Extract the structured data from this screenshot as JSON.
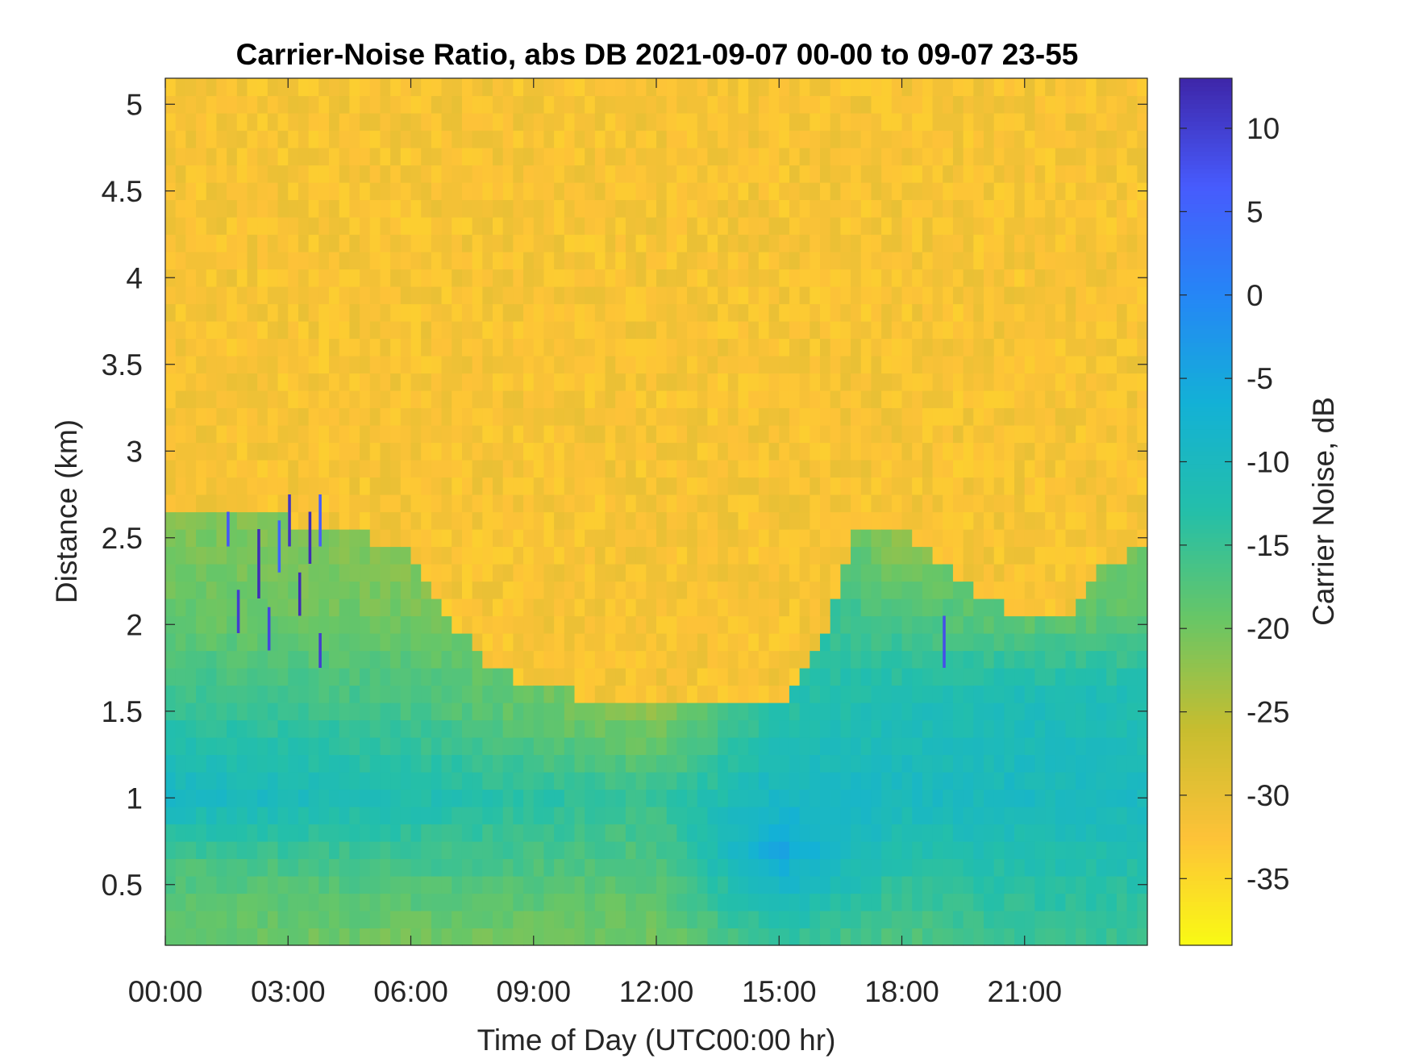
{
  "chart_data": {
    "type": "heatmap",
    "title": "Carrier-Noise Ratio, abs DB 2021-09-07 00-00 to 09-07 23-55",
    "xlabel": "Time of Day (UTC00:00 hr)",
    "ylabel": "Distance (km)",
    "x_unit": "hours",
    "xlim": [
      0,
      24
    ],
    "ylim": [
      0.15,
      5.15
    ],
    "x_ticks": [
      0,
      3,
      6,
      9,
      12,
      15,
      18,
      21
    ],
    "x_tick_labels": [
      "00:00",
      "03:00",
      "06:00",
      "09:00",
      "12:00",
      "15:00",
      "18:00",
      "21:00"
    ],
    "y_ticks": [
      0.5,
      1,
      1.5,
      2,
      2.5,
      3,
      3.5,
      4,
      4.5,
      5
    ],
    "y_tick_labels": [
      "0.5",
      "1",
      "1.5",
      "2",
      "2.5",
      "3",
      "3.5",
      "4",
      "4.5",
      "5"
    ],
    "colorbar": {
      "label": "Carrier Noise, dB",
      "range": [
        -39,
        13
      ],
      "ticks": [
        10,
        5,
        0,
        -5,
        -10,
        -15,
        -20,
        -25,
        -30,
        -35
      ],
      "tick_labels": [
        "10",
        "5",
        "0",
        "-5",
        "-10",
        "-15",
        "-20",
        "-25",
        "-30",
        "-35"
      ],
      "colormap": "parula"
    },
    "time_bin_hours": 0.25,
    "range_gates_km": [
      0.2,
      0.3,
      0.4,
      0.5,
      0.6,
      0.7,
      0.8,
      0.9,
      1.0,
      1.1,
      1.2,
      1.3,
      1.4,
      1.5,
      1.6,
      1.7,
      1.8,
      1.9,
      2.0,
      2.1,
      2.2,
      2.3,
      2.4,
      2.5,
      2.6,
      2.7,
      2.8,
      2.9,
      3.0,
      3.1,
      3.2,
      3.3,
      3.4,
      3.5,
      3.6,
      3.7,
      3.8,
      3.9,
      4.0,
      4.1,
      4.2,
      4.3,
      4.4,
      4.5,
      4.6,
      4.7,
      4.8,
      4.9,
      5.0,
      5.1
    ],
    "signal_top_km": [
      [
        0,
        2.65
      ],
      [
        1,
        2.65
      ],
      [
        2,
        2.65
      ],
      [
        3,
        2.6
      ],
      [
        4,
        2.55
      ],
      [
        5,
        2.5
      ],
      [
        6,
        2.4
      ],
      [
        7,
        2.0
      ],
      [
        8,
        1.75
      ],
      [
        9,
        1.65
      ],
      [
        10,
        1.6
      ],
      [
        12,
        1.55
      ],
      [
        13,
        1.55
      ],
      [
        14,
        1.5
      ],
      [
        15,
        1.55
      ],
      [
        16,
        1.85
      ],
      [
        17,
        2.6
      ],
      [
        18,
        2.55
      ],
      [
        19,
        2.35
      ],
      [
        20,
        2.15
      ],
      [
        21,
        2.05
      ],
      [
        22,
        2.05
      ],
      [
        23,
        2.35
      ],
      [
        24,
        2.45
      ]
    ],
    "noise_floor_db": -32,
    "signal_profile_db": [
      [
        0,
        0.2,
        -19
      ],
      [
        0,
        0.6,
        -17
      ],
      [
        0,
        1.0,
        -9
      ],
      [
        0,
        1.5,
        -14
      ],
      [
        0,
        2.0,
        -19
      ],
      [
        0,
        2.6,
        -21
      ],
      [
        6,
        0.2,
        -20
      ],
      [
        6,
        1.0,
        -12
      ],
      [
        6,
        1.5,
        -16
      ],
      [
        6,
        2.2,
        -21
      ],
      [
        12,
        0.2,
        -20
      ],
      [
        12,
        1.0,
        -15
      ],
      [
        12,
        1.5,
        -22
      ],
      [
        15,
        0.2,
        -14
      ],
      [
        15,
        0.7,
        -5
      ],
      [
        15,
        1.0,
        -9
      ],
      [
        15,
        1.5,
        -13
      ],
      [
        18,
        0.2,
        -17
      ],
      [
        18,
        1.0,
        -10
      ],
      [
        18,
        1.6,
        -12
      ],
      [
        18,
        2.2,
        -19
      ],
      [
        18,
        2.5,
        -23
      ],
      [
        21,
        0.2,
        -15
      ],
      [
        21,
        1.0,
        -10
      ],
      [
        21,
        1.6,
        -11
      ],
      [
        21,
        2.0,
        -18
      ],
      [
        24,
        0.2,
        -15
      ],
      [
        24,
        1.0,
        -10
      ],
      [
        24,
        1.6,
        -12
      ],
      [
        24,
        2.2,
        -20
      ]
    ],
    "outliers_db": [
      {
        "hour": 1.5,
        "km_range": [
          2.45,
          2.65
        ],
        "value": 7
      },
      {
        "hour": 1.75,
        "km_range": [
          1.95,
          2.2
        ],
        "value": 10
      },
      {
        "hour": 2.25,
        "km_range": [
          2.15,
          2.55
        ],
        "value": 12
      },
      {
        "hour": 2.5,
        "km_range": [
          1.85,
          2.1
        ],
        "value": 9
      },
      {
        "hour": 2.75,
        "km_range": [
          2.3,
          2.6
        ],
        "value": 5
      },
      {
        "hour": 3.0,
        "km_range": [
          2.45,
          2.75
        ],
        "value": 11
      },
      {
        "hour": 3.25,
        "km_range": [
          2.05,
          2.3
        ],
        "value": 12
      },
      {
        "hour": 3.5,
        "km_range": [
          2.35,
          2.65
        ],
        "value": 12
      },
      {
        "hour": 3.75,
        "km_range": [
          1.75,
          1.95
        ],
        "value": 10
      },
      {
        "hour": 3.75,
        "km_range": [
          2.45,
          2.75
        ],
        "value": 6
      },
      {
        "hour": 19.0,
        "km_range": [
          1.75,
          2.05
        ],
        "value": 8
      }
    ],
    "grid": false,
    "legend": "none"
  }
}
